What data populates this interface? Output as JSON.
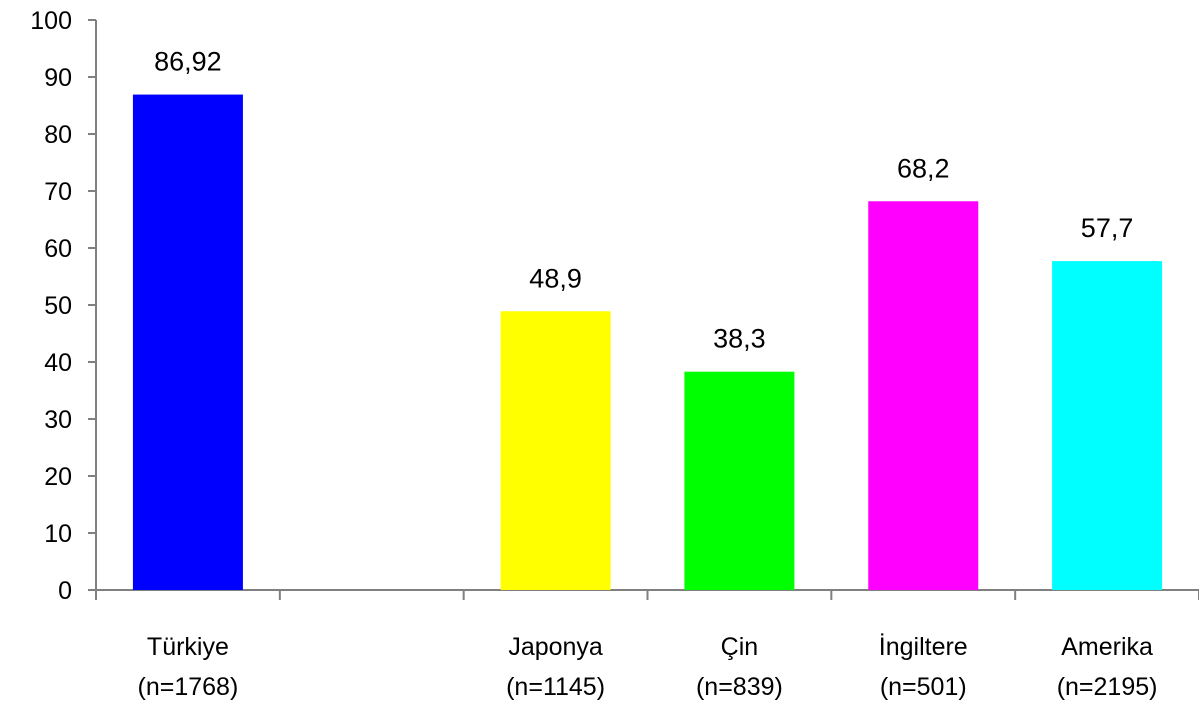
{
  "chart_data": {
    "type": "bar",
    "title": "",
    "xlabel": "",
    "ylabel": "",
    "ylim": [
      0,
      100
    ],
    "y_ticks": [
      0,
      10,
      20,
      30,
      40,
      50,
      60,
      70,
      80,
      90,
      100
    ],
    "grid": false,
    "legend": "none",
    "categories": [
      {
        "name": "Türkiye",
        "n": "(n=1768)",
        "value": 86.92,
        "label": "86,92",
        "color": "#0000FF"
      },
      {
        "name": "",
        "n": "",
        "value": null,
        "label": "",
        "color": ""
      },
      {
        "name": "Japonya",
        "n": "(n=1145)",
        "value": 48.9,
        "label": "48,9",
        "color": "#FFFF00"
      },
      {
        "name": "Çin",
        "n": "(n=839)",
        "value": 38.3,
        "label": "38,3",
        "color": "#00FF00"
      },
      {
        "name": "İngiltere",
        "n": "(n=501)",
        "value": 68.2,
        "label": "68,2",
        "color": "#FF00FF"
      },
      {
        "name": "Amerika",
        "n": "(n=2195)",
        "value": 57.7,
        "label": "57,7",
        "color": "#00FFFF"
      }
    ]
  }
}
